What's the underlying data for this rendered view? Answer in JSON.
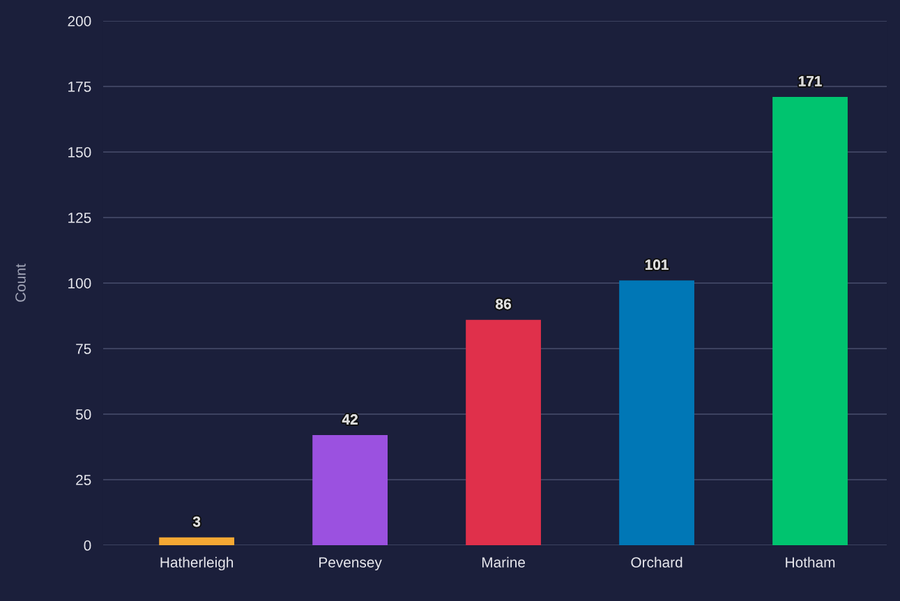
{
  "chart_data": {
    "type": "bar",
    "ylabel": "Count",
    "categories": [
      "Hatherleigh",
      "Pevensey",
      "Marine",
      "Orchard",
      "Hotham"
    ],
    "values": [
      3,
      42,
      86,
      101,
      171
    ],
    "colors": [
      "#f5a833",
      "#9b51e0",
      "#e0304b",
      "#0077b6",
      "#00c46f"
    ],
    "ylim": [
      0,
      200
    ],
    "yticks": [
      0,
      25,
      50,
      75,
      100,
      125,
      150,
      175,
      200
    ],
    "grid": "y",
    "data_labels": true,
    "legend": false
  }
}
